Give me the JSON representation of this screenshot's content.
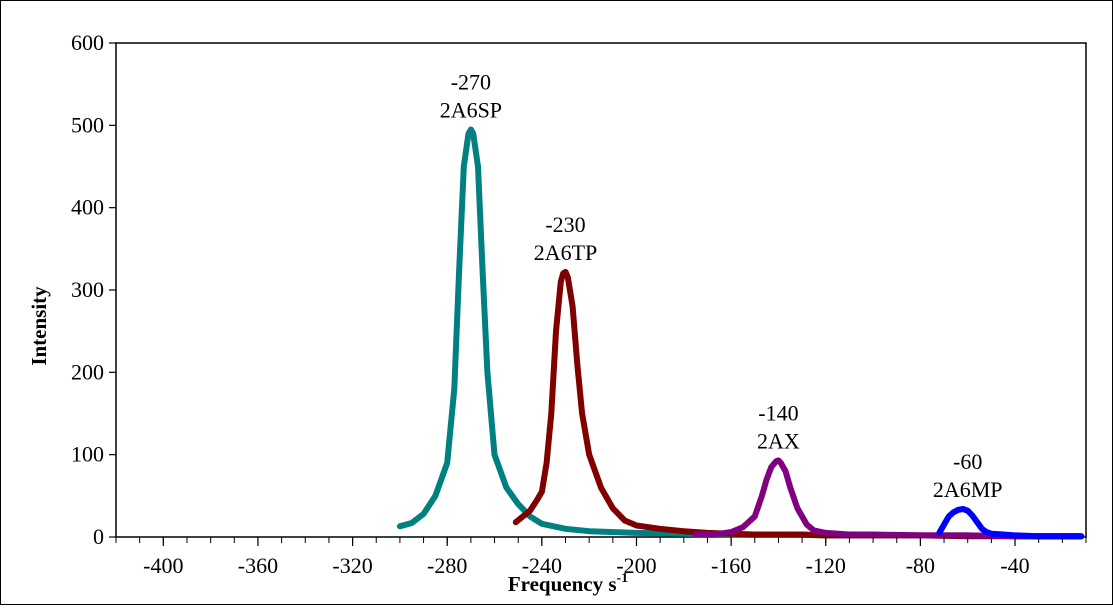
{
  "chart_data": {
    "type": "line",
    "title": "",
    "xlabel": "Frequency s",
    "xlabel_superscript": "-1",
    "ylabel": "Intensity",
    "xlim": [
      -420,
      -10
    ],
    "ylim": [
      0,
      600
    ],
    "x_ticks": [
      -400,
      -360,
      -320,
      -280,
      -240,
      -200,
      -160,
      -120,
      -80,
      -40
    ],
    "x_tick_labels": [
      "-400",
      "-360",
      "-320",
      "-280",
      "-240",
      "-200",
      "-160",
      "-120",
      "-80",
      "-40"
    ],
    "y_ticks": [
      0,
      100,
      200,
      300,
      400,
      500,
      600
    ],
    "y_tick_labels": [
      "0",
      "100",
      "200",
      "300",
      "400",
      "500",
      "600"
    ],
    "x_minor_step": 10,
    "grid": false,
    "legend": "none",
    "series": [
      {
        "color": "#008080",
        "x": [
          -300,
          -295,
          -290,
          -285,
          -280,
          -277,
          -275,
          -273,
          -271,
          -270,
          -269,
          -267,
          -265,
          -263,
          -260,
          -255,
          -250,
          -245,
          -240,
          -230,
          -220,
          -200,
          -180,
          -160,
          -140,
          -120,
          -100,
          -80,
          -60,
          -40,
          -20,
          -12
        ],
        "y": [
          13,
          17,
          28,
          50,
          90,
          180,
          320,
          450,
          490,
          495,
          490,
          450,
          320,
          200,
          100,
          60,
          40,
          25,
          16,
          10,
          7,
          5,
          4,
          3,
          3,
          2,
          2,
          2,
          2,
          1,
          1,
          1
        ]
      },
      {
        "color": "#800000",
        "x": [
          -251,
          -248,
          -245,
          -242,
          -240,
          -238,
          -236,
          -234,
          -232,
          -231,
          -230,
          -229,
          -227,
          -225,
          -223,
          -220,
          -215,
          -210,
          -205,
          -200,
          -190,
          -180,
          -170,
          -160,
          -150,
          -140,
          -130,
          -120,
          -100,
          -80,
          -60,
          -40,
          -20,
          -12
        ],
        "y": [
          18,
          25,
          32,
          45,
          55,
          90,
          150,
          250,
          310,
          320,
          322,
          315,
          280,
          210,
          150,
          100,
          60,
          35,
          20,
          14,
          10,
          7,
          5,
          4,
          3,
          3,
          3,
          2,
          2,
          2,
          1,
          1,
          1,
          1
        ]
      },
      {
        "color": "#800080",
        "x": [
          -175,
          -165,
          -160,
          -155,
          -150,
          -147,
          -145,
          -143,
          -141,
          -140,
          -139,
          -137,
          -135,
          -132,
          -128,
          -125,
          -120,
          -110,
          -100,
          -80,
          -60,
          -40,
          -20,
          -12
        ],
        "y": [
          3,
          4,
          6,
          12,
          25,
          50,
          70,
          85,
          92,
          93,
          90,
          80,
          60,
          35,
          15,
          8,
          5,
          3,
          3,
          2,
          2,
          1,
          1,
          1
        ]
      },
      {
        "color": "#0000ff",
        "x": [
          -72,
          -70,
          -68,
          -66,
          -64,
          -62,
          -60,
          -58,
          -56,
          -54,
          -52,
          -50,
          -45,
          -40,
          -30,
          -20,
          -12
        ],
        "y": [
          5,
          15,
          25,
          30,
          33,
          34,
          32,
          26,
          18,
          10,
          6,
          4,
          3,
          2,
          1,
          1,
          1
        ]
      }
    ],
    "annotations": [
      {
        "value_text": "-270",
        "name_text": "2A6SP",
        "x": -270,
        "y": 495
      },
      {
        "value_text": "-230",
        "name_text": "2A6TP",
        "x": -230,
        "y": 322
      },
      {
        "value_text": "-140",
        "name_text": "2AX",
        "x": -140,
        "y": 93
      },
      {
        "value_text": "-60",
        "name_text": "2A6MP",
        "x": -60,
        "y": 34
      }
    ]
  }
}
